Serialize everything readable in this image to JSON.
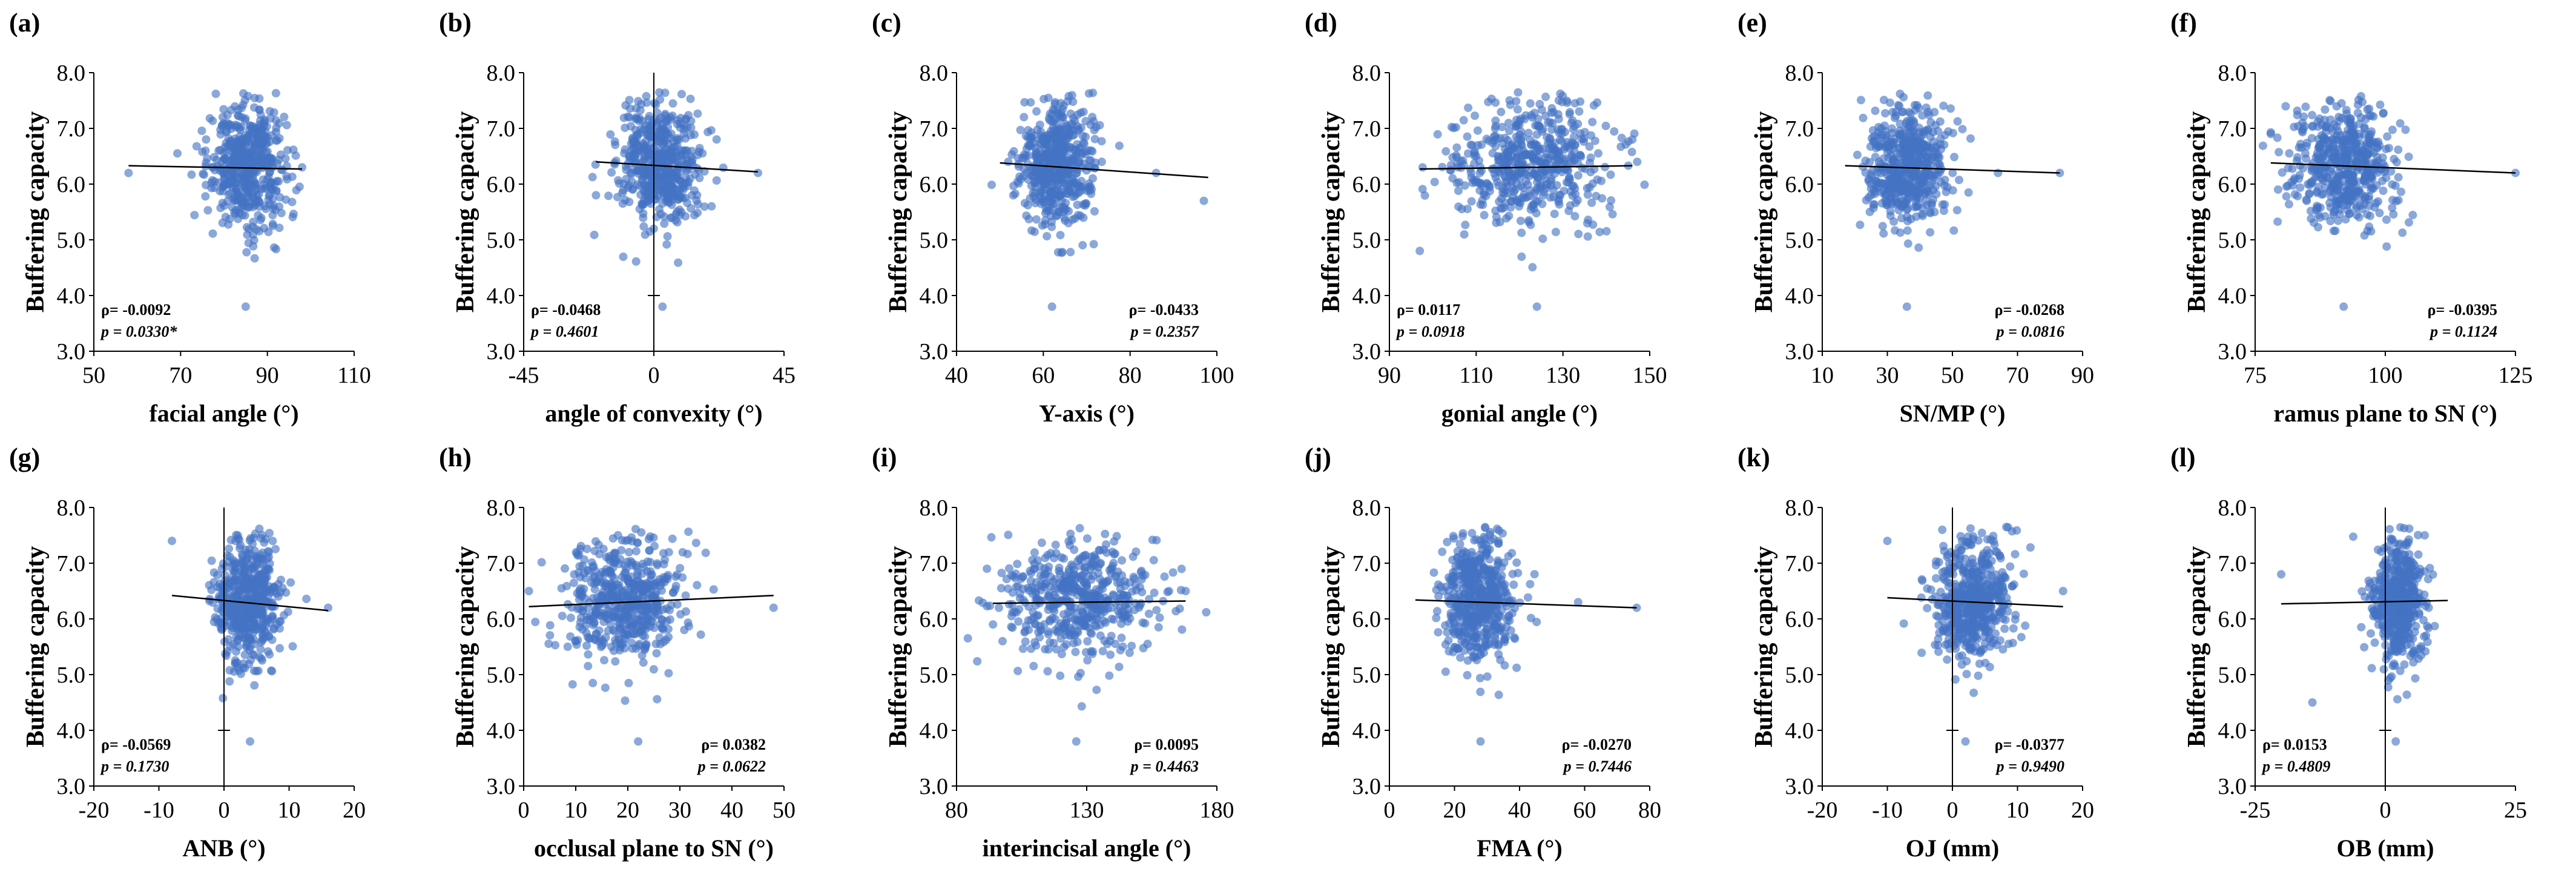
{
  "figure": {
    "y_axis_label": "Buffering capacity",
    "point_color": "#4472C4",
    "trend_color": "#000000"
  },
  "chart_data": [
    {
      "panel_label": "(a)",
      "type": "scatter",
      "xlabel": "facial angle (°)",
      "ylabel": "Buffering capacity",
      "xlim": [
        50,
        110
      ],
      "ylim": [
        3.0,
        8.0
      ],
      "xticks": [
        "50",
        "70",
        "90",
        "110"
      ],
      "yticks": [
        "3.0",
        "4.0",
        "5.0",
        "6.0",
        "7.0",
        "8.0"
      ],
      "rho": "ρ= -0.0092",
      "p": "p = 0.0330*",
      "trendline": {
        "x": [
          58,
          98
        ],
        "y": [
          6.33,
          6.27
        ]
      },
      "cloud": {
        "x_center": 85,
        "x_sd": 4.5,
        "y_center": 6.35,
        "y_sd": 0.55
      },
      "outliers": [
        {
          "x": 58,
          "y": 6.2
        },
        {
          "x": 98,
          "y": 6.3
        },
        {
          "x": 85,
          "y": 3.8
        }
      ],
      "annotation_pos": "bottom-left",
      "x_zero_line": false
    },
    {
      "panel_label": "(b)",
      "type": "scatter",
      "xlabel": "angle of convexity (°)",
      "ylabel": "Buffering capacity",
      "xlim": [
        -45,
        45
      ],
      "ylim": [
        3.0,
        8.0
      ],
      "xticks": [
        "-45",
        "0",
        "45"
      ],
      "yticks": [
        "3.0",
        "4.0",
        "5.0",
        "6.0",
        "7.0",
        "8.0"
      ],
      "rho": "ρ= -0.0468",
      "p": "p = 0.4601",
      "trendline": {
        "x": [
          -20,
          36
        ],
        "y": [
          6.4,
          6.22
        ]
      },
      "cloud": {
        "x_center": 2,
        "x_sd": 7,
        "y_center": 6.35,
        "y_sd": 0.55
      },
      "outliers": [
        {
          "x": 36,
          "y": 6.2
        },
        {
          "x": -20,
          "y": 5.8
        },
        {
          "x": 3,
          "y": 3.8
        }
      ],
      "annotation_pos": "bottom-left",
      "x_zero_line": true
    },
    {
      "panel_label": "(c)",
      "type": "scatter",
      "xlabel": "Y-axis (°)",
      "ylabel": "Buffering capacity",
      "xlim": [
        40,
        100
      ],
      "ylim": [
        3.0,
        8.0
      ],
      "xticks": [
        "40",
        "60",
        "80",
        "100"
      ],
      "yticks": [
        "3.0",
        "4.0",
        "5.0",
        "6.0",
        "7.0",
        "8.0"
      ],
      "rho": "ρ= -0.0433",
      "p": "p = 0.2357",
      "trendline": {
        "x": [
          50,
          98
        ],
        "y": [
          6.38,
          6.12
        ]
      },
      "cloud": {
        "x_center": 63,
        "x_sd": 4.5,
        "y_center": 6.35,
        "y_sd": 0.55
      },
      "outliers": [
        {
          "x": 86,
          "y": 6.2
        },
        {
          "x": 97,
          "y": 5.7
        },
        {
          "x": 62,
          "y": 3.8
        }
      ],
      "annotation_pos": "bottom-right",
      "x_zero_line": false
    },
    {
      "panel_label": "(d)",
      "type": "scatter",
      "xlabel": "gonial angle (°)",
      "ylabel": "Buffering capacity",
      "xlim": [
        90,
        150
      ],
      "ylim": [
        3.0,
        8.0
      ],
      "xticks": [
        "90",
        "110",
        "130",
        "150"
      ],
      "yticks": [
        "3.0",
        "4.0",
        "5.0",
        "6.0",
        "7.0",
        "8.0"
      ],
      "rho": "ρ= 0.0117",
      "p": "p = 0.0918",
      "trendline": {
        "x": [
          97,
          146
        ],
        "y": [
          6.27,
          6.33
        ]
      },
      "cloud": {
        "x_center": 122,
        "x_sd": 9,
        "y_center": 6.35,
        "y_sd": 0.55
      },
      "outliers": [
        {
          "x": 97,
          "y": 4.8
        },
        {
          "x": 146,
          "y": 6.8
        },
        {
          "x": 124,
          "y": 3.8
        }
      ],
      "annotation_pos": "bottom-left",
      "x_zero_line": false
    },
    {
      "panel_label": "(e)",
      "type": "scatter",
      "xlabel": "SN/MP (°)",
      "ylabel": "Buffering capacity",
      "xlim": [
        10,
        90
      ],
      "ylim": [
        3.0,
        8.0
      ],
      "xticks": [
        "10",
        "30",
        "50",
        "70",
        "90"
      ],
      "yticks": [
        "3.0",
        "4.0",
        "5.0",
        "6.0",
        "7.0",
        "8.0"
      ],
      "rho": "ρ= -0.0268",
      "p": "p = 0.0816",
      "trendline": {
        "x": [
          17,
          83
        ],
        "y": [
          6.33,
          6.2
        ]
      },
      "cloud": {
        "x_center": 36,
        "x_sd": 6,
        "y_center": 6.35,
        "y_sd": 0.55
      },
      "outliers": [
        {
          "x": 83,
          "y": 6.2
        },
        {
          "x": 64,
          "y": 6.2
        },
        {
          "x": 36,
          "y": 3.8
        }
      ],
      "annotation_pos": "bottom-right",
      "x_zero_line": false
    },
    {
      "panel_label": "(f)",
      "type": "scatter",
      "xlabel": "ramus plane to SN (°)",
      "ylabel": "Buffering capacity",
      "xlim": [
        75,
        125
      ],
      "ylim": [
        3.0,
        8.0
      ],
      "xticks": [
        "75",
        "100",
        "125"
      ],
      "yticks": [
        "3.0",
        "4.0",
        "5.0",
        "6.0",
        "7.0",
        "8.0"
      ],
      "rho": "ρ= -0.0395",
      "p": "p = 0.1124",
      "trendline": {
        "x": [
          78,
          125
        ],
        "y": [
          6.38,
          6.2
        ]
      },
      "cloud": {
        "x_center": 92,
        "x_sd": 5,
        "y_center": 6.35,
        "y_sd": 0.55
      },
      "outliers": [
        {
          "x": 125,
          "y": 6.2
        },
        {
          "x": 78,
          "y": 6.9
        },
        {
          "x": 92,
          "y": 3.8
        }
      ],
      "annotation_pos": "bottom-right",
      "x_zero_line": false
    },
    {
      "panel_label": "(g)",
      "type": "scatter",
      "xlabel": "ANB (°)",
      "ylabel": "Buffering capacity",
      "xlim": [
        -20,
        20
      ],
      "ylim": [
        3.0,
        8.0
      ],
      "xticks": [
        "-20",
        "-10",
        "0",
        "10",
        "20"
      ],
      "yticks": [
        "3.0",
        "4.0",
        "5.0",
        "6.0",
        "7.0",
        "8.0"
      ],
      "rho": "ρ= -0.0569",
      "p": "p = 0.1730",
      "trendline": {
        "x": [
          -8,
          16
        ],
        "y": [
          6.42,
          6.15
        ]
      },
      "cloud": {
        "x_center": 3.5,
        "x_sd": 2.5,
        "y_center": 6.35,
        "y_sd": 0.55
      },
      "outliers": [
        {
          "x": 16,
          "y": 6.2
        },
        {
          "x": -8,
          "y": 7.4
        },
        {
          "x": 4,
          "y": 3.8
        }
      ],
      "annotation_pos": "bottom-left",
      "x_zero_line": true
    },
    {
      "panel_label": "(h)",
      "type": "scatter",
      "xlabel": "occlusal plane to SN (°)",
      "ylabel": "Buffering capacity",
      "xlim": [
        0,
        50
      ],
      "ylim": [
        3.0,
        8.0
      ],
      "xticks": [
        "0",
        "10",
        "20",
        "30",
        "40",
        "50"
      ],
      "yticks": [
        "3.0",
        "4.0",
        "5.0",
        "6.0",
        "7.0",
        "8.0"
      ],
      "rho": "ρ= 0.0382",
      "p": "p = 0.0622",
      "trendline": {
        "x": [
          1,
          48
        ],
        "y": [
          6.22,
          6.42
        ]
      },
      "cloud": {
        "x_center": 20,
        "x_sd": 5.5,
        "y_center": 6.35,
        "y_sd": 0.55
      },
      "outliers": [
        {
          "x": 48,
          "y": 6.2
        },
        {
          "x": 1,
          "y": 6.5
        },
        {
          "x": 22,
          "y": 3.8
        }
      ],
      "annotation_pos": "bottom-right",
      "x_zero_line": false
    },
    {
      "panel_label": "(i)",
      "type": "scatter",
      "xlabel": "interincisal  angle (°)",
      "ylabel": "Buffering capacity",
      "xlim": [
        80,
        180
      ],
      "ylim": [
        3.0,
        8.0
      ],
      "xticks": [
        "80",
        "130",
        "180"
      ],
      "yticks": [
        "3.0",
        "4.0",
        "5.0",
        "6.0",
        "7.0",
        "8.0"
      ],
      "rho": "ρ= 0.0095",
      "p": "p = 0.4463",
      "trendline": {
        "x": [
          94,
          168
        ],
        "y": [
          6.28,
          6.32
        ]
      },
      "cloud": {
        "x_center": 127,
        "x_sd": 14,
        "y_center": 6.35,
        "y_sd": 0.55
      },
      "outliers": [
        {
          "x": 168,
          "y": 6.5
        },
        {
          "x": 94,
          "y": 5.9
        },
        {
          "x": 126,
          "y": 3.8
        }
      ],
      "annotation_pos": "bottom-right",
      "x_zero_line": false
    },
    {
      "panel_label": "(j)",
      "type": "scatter",
      "xlabel": "FMA (°)",
      "ylabel": "Buffering capacity",
      "xlim": [
        0,
        80
      ],
      "ylim": [
        3.0,
        8.0
      ],
      "xticks": [
        "0",
        "20",
        "40",
        "60",
        "80"
      ],
      "yticks": [
        "3.0",
        "4.0",
        "5.0",
        "6.0",
        "7.0",
        "8.0"
      ],
      "rho": "ρ= -0.0270",
      "p": "p = 0.7446",
      "trendline": {
        "x": [
          8,
          76
        ],
        "y": [
          6.34,
          6.2
        ]
      },
      "cloud": {
        "x_center": 27,
        "x_sd": 5.5,
        "y_center": 6.35,
        "y_sd": 0.55
      },
      "outliers": [
        {
          "x": 76,
          "y": 6.2
        },
        {
          "x": 58,
          "y": 6.3
        },
        {
          "x": 28,
          "y": 3.8
        }
      ],
      "annotation_pos": "bottom-right",
      "x_zero_line": false
    },
    {
      "panel_label": "(k)",
      "type": "scatter",
      "xlabel": "OJ (mm)",
      "ylabel": "Buffering capacity",
      "xlim": [
        -20,
        20
      ],
      "ylim": [
        3.0,
        8.0
      ],
      "xticks": [
        "-20",
        "-10",
        "0",
        "10",
        "20"
      ],
      "yticks": [
        "3.0",
        "4.0",
        "5.0",
        "6.0",
        "7.0",
        "8.0"
      ],
      "rho": "ρ= -0.0377",
      "p": "p = 0.9490",
      "trendline": {
        "x": [
          -10,
          17
        ],
        "y": [
          6.38,
          6.22
        ]
      },
      "cloud": {
        "x_center": 3,
        "x_sd": 3,
        "y_center": 6.35,
        "y_sd": 0.55
      },
      "outliers": [
        {
          "x": 17,
          "y": 6.5
        },
        {
          "x": -10,
          "y": 7.4
        },
        {
          "x": 2,
          "y": 3.8
        }
      ],
      "annotation_pos": "bottom-right",
      "x_zero_line": true
    },
    {
      "panel_label": "(l)",
      "type": "scatter",
      "xlabel": "OB (mm)",
      "ylabel": "Buffering capacity",
      "xlim": [
        -25,
        25
      ],
      "ylim": [
        3.0,
        8.0
      ],
      "xticks": [
        "-25",
        "0",
        "25"
      ],
      "yticks": [
        "3.0",
        "4.0",
        "5.0",
        "6.0",
        "7.0",
        "8.0"
      ],
      "rho": "ρ= 0.0153",
      "p": "p = 0.4809",
      "trendline": {
        "x": [
          -20,
          12
        ],
        "y": [
          6.27,
          6.33
        ]
      },
      "cloud": {
        "x_center": 2.5,
        "x_sd": 2.5,
        "y_center": 6.35,
        "y_sd": 0.55
      },
      "outliers": [
        {
          "x": -20,
          "y": 6.8
        },
        {
          "x": -14,
          "y": 4.5
        },
        {
          "x": 2,
          "y": 3.8
        }
      ],
      "annotation_pos": "bottom-left",
      "x_zero_line": true
    }
  ]
}
